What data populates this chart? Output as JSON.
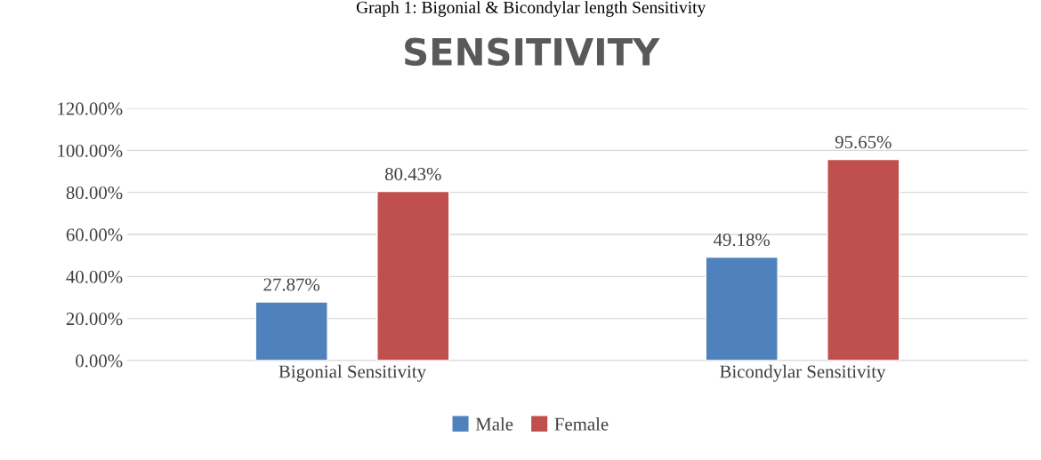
{
  "chart_data": {
    "type": "bar",
    "title": "SENSITIVITY",
    "annotations": [
      "Graph 1: Bigonial & Bicondylar length Sensitivity"
    ],
    "categories": [
      "Bigonial Sensitivity",
      "Bicondylar Sensitivity"
    ],
    "series": [
      {
        "name": "Male",
        "color": "#4f81bd",
        "values": [
          27.87,
          49.18
        ],
        "value_labels": [
          "27.87%",
          "49.18%"
        ]
      },
      {
        "name": "Female",
        "color": "#c0504d",
        "values": [
          80.43,
          95.65
        ],
        "value_labels": [
          "80.43%",
          "95.65%"
        ]
      }
    ],
    "ylim": [
      0,
      120
    ],
    "yticks": [
      {
        "value": 0,
        "label": "0.00%"
      },
      {
        "value": 20,
        "label": "20.00%"
      },
      {
        "value": 40,
        "label": "40.00%"
      },
      {
        "value": 60,
        "label": "60.00%"
      },
      {
        "value": 80,
        "label": "80.00%"
      },
      {
        "value": 100,
        "label": "100.00%"
      },
      {
        "value": 120,
        "label": "120.00%"
      }
    ],
    "grid": "y",
    "legend": "bottom"
  }
}
